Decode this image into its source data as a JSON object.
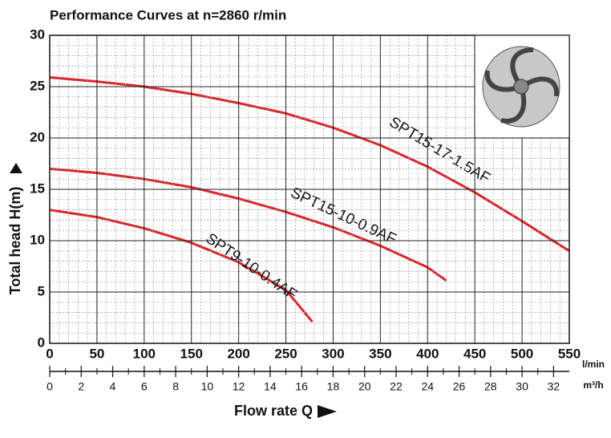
{
  "chart_data": {
    "type": "line",
    "title": "Performance Curves at n=2860 r/min",
    "y_label": "Total head H(m)",
    "x_label": "Flow rate Q",
    "x_unit": "l/min",
    "x2_unit": "m³/h",
    "xlim": [
      0,
      550
    ],
    "xticks": [
      0,
      50,
      100,
      150,
      200,
      250,
      300,
      350,
      400,
      450,
      500,
      550
    ],
    "ylim": [
      0,
      30
    ],
    "yticks": [
      0,
      5,
      10,
      15,
      20,
      25,
      30
    ],
    "x2lim": [
      0,
      33
    ],
    "x2ticks": [
      0,
      2,
      4,
      6,
      8,
      10,
      12,
      14,
      16,
      18,
      20,
      22,
      24,
      26,
      28,
      30,
      32
    ],
    "grid": true,
    "minor_grid": true,
    "series": [
      {
        "name": "SPT15-17-1.5AF",
        "color": "#d9262c",
        "x": [
          0,
          50,
          100,
          150,
          200,
          250,
          300,
          350,
          400,
          450,
          500,
          550
        ],
        "values": [
          25.9,
          25.5,
          25,
          24.3,
          23.4,
          22.4,
          21,
          19.3,
          17.2,
          14.7,
          11.9,
          9.0
        ]
      },
      {
        "name": "SPT15-10-0.9AF",
        "color": "#d9262c",
        "x": [
          0,
          50,
          100,
          150,
          200,
          250,
          300,
          350,
          400,
          420
        ],
        "values": [
          17,
          16.6,
          16,
          15.2,
          14.1,
          12.8,
          11.3,
          9.5,
          7.4,
          6.1
        ]
      },
      {
        "name": "SPT9-10-0.4AF",
        "color": "#d9262c",
        "x": [
          0,
          50,
          100,
          150,
          200,
          250,
          278
        ],
        "values": [
          13,
          12.3,
          11.2,
          9.8,
          7.9,
          5.2,
          2.1
        ]
      }
    ]
  }
}
